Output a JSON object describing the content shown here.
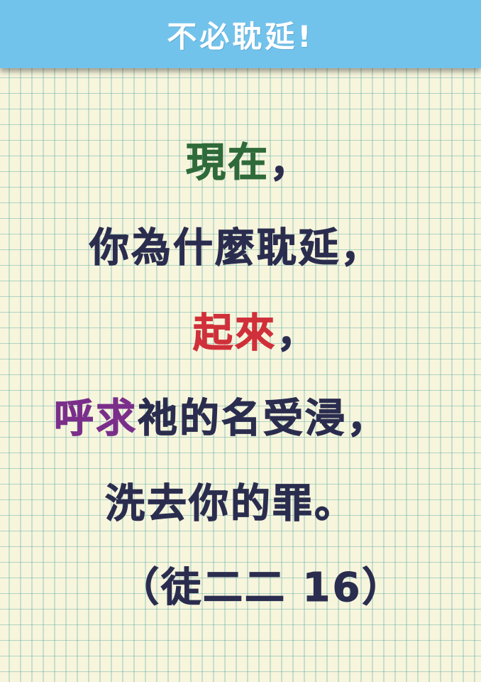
{
  "header": {
    "title": "不必耽延!"
  },
  "verse": {
    "line1": {
      "highlight": "現在",
      "punct": "，"
    },
    "line2": {
      "text": "你為什麼耽延",
      "punct": "，"
    },
    "line3": {
      "highlight": "起來",
      "punct": "，"
    },
    "line4": {
      "highlight": "呼求",
      "text": "祂的名受浸",
      "punct": "，"
    },
    "line5": {
      "text": "洗去你的罪",
      "punct": "。"
    },
    "line6": {
      "text": "（徒二二 16）"
    }
  },
  "colors": {
    "header_bg": "#72c3ec",
    "paper_bg": "#f7f5dc",
    "grid_line": "#46a0a0",
    "text_dark": "#2b2d4f",
    "highlight_green": "#2f6a3a",
    "highlight_red": "#d0303a",
    "highlight_purple": "#7a2f8a"
  }
}
